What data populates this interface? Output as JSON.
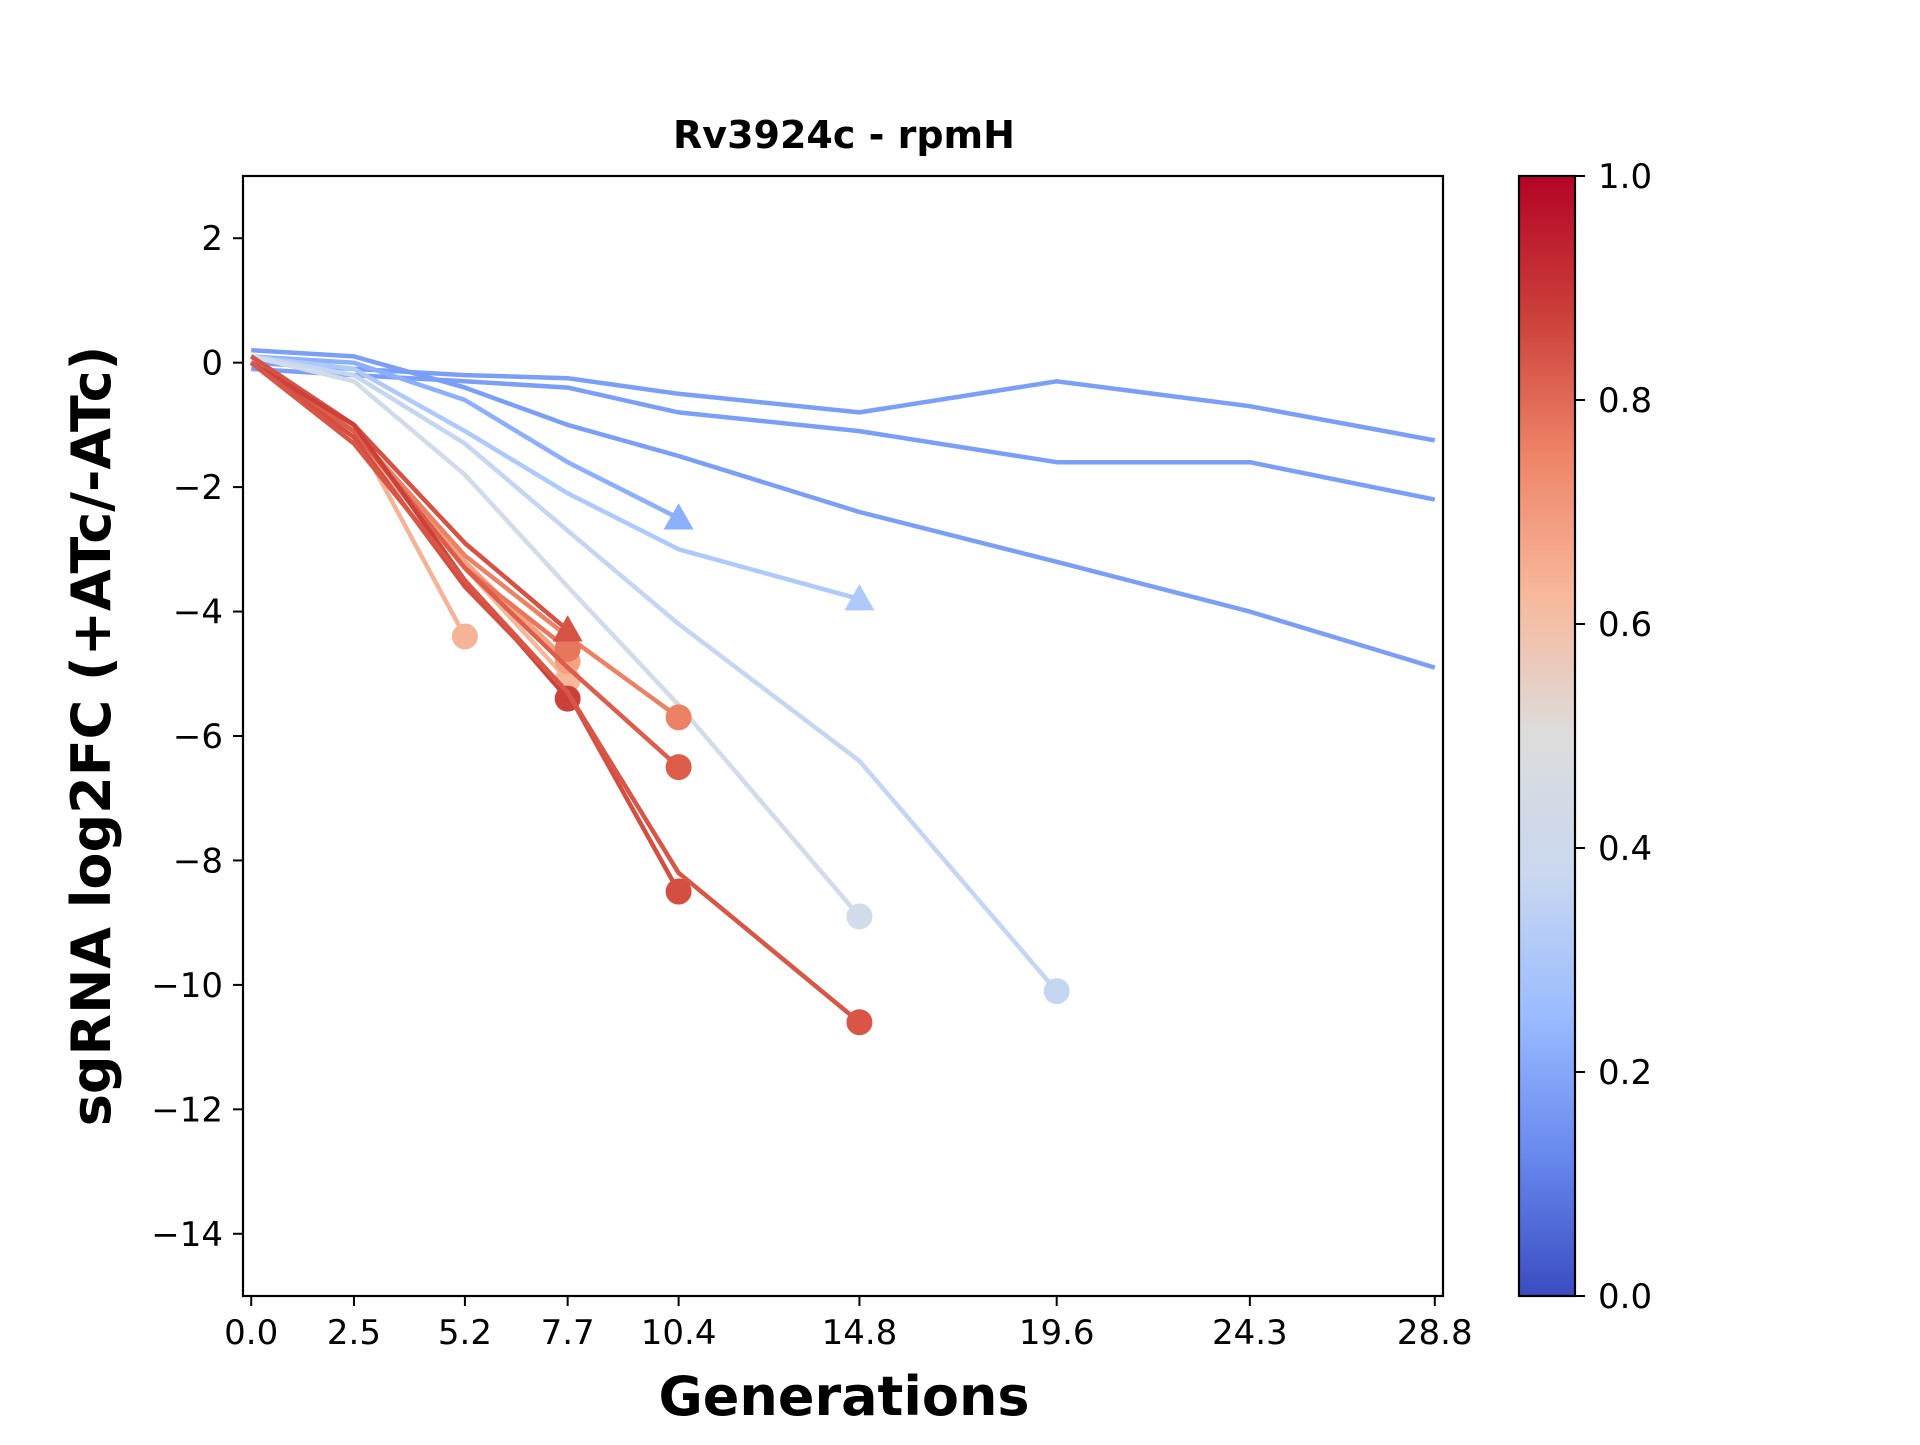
{
  "chart_data": {
    "type": "line",
    "title": "Rv3924c - rpmH",
    "xlabel": "Generations",
    "ylabel": "sgRNA log2FC (+ATc/-ATc)",
    "x_ticks": [
      0.0,
      2.5,
      5.2,
      7.7,
      10.4,
      14.8,
      19.6,
      24.3,
      28.8
    ],
    "x_tick_labels": [
      "0.0",
      "2.5",
      "5.2",
      "7.7",
      "10.4",
      "14.8",
      "19.6",
      "24.3",
      "28.8"
    ],
    "xlim": [
      -0.2,
      29.0
    ],
    "y_ticks": [
      2,
      0,
      -2,
      -4,
      -6,
      -8,
      -10,
      -12,
      -14
    ],
    "y_tick_labels": [
      "2",
      "0",
      "−2",
      "−4",
      "−6",
      "−8",
      "−10",
      "−12",
      "−14"
    ],
    "ylim": [
      -15,
      3
    ],
    "grid": false,
    "colorbar": {
      "range": [
        0.0,
        1.0
      ],
      "ticks": [
        0.0,
        0.2,
        0.4,
        0.6,
        0.8,
        1.0
      ],
      "tick_labels": [
        "0.0",
        "0.2",
        "0.4",
        "0.6",
        "0.8",
        "1.0"
      ],
      "colormap": "coolwarm",
      "stops": [
        "#3b4cc0",
        "#6788ee",
        "#9abbff",
        "#c9d7f0",
        "#dddcdc",
        "#f7b89c",
        "#ee8468",
        "#cc403a",
        "#b40426"
      ]
    },
    "series": [
      {
        "x": [
          0.0,
          2.5,
          5.2,
          7.7,
          10.4,
          14.8,
          19.6,
          24.3,
          28.8
        ],
        "y": [
          0.0,
          -0.1,
          -0.2,
          -0.25,
          -0.5,
          -0.8,
          -0.3,
          -0.7,
          -1.25
        ],
        "color": "#7b9ff9",
        "end_marker": "none"
      },
      {
        "x": [
          0.0,
          2.5,
          5.2,
          7.7,
          10.4,
          14.8,
          19.6,
          24.3,
          28.8
        ],
        "y": [
          -0.1,
          -0.2,
          -0.3,
          -0.4,
          -0.8,
          -1.1,
          -1.6,
          -1.6,
          -2.2
        ],
        "color": "#7b9ff9",
        "end_marker": "none"
      },
      {
        "x": [
          0.0,
          2.5,
          5.2,
          7.7,
          10.4,
          14.8,
          19.6,
          24.3,
          28.8
        ],
        "y": [
          0.2,
          0.1,
          -0.4,
          -1.0,
          -1.5,
          -2.4,
          -3.2,
          -4.0,
          -4.9
        ],
        "color": "#7b9ff9",
        "end_marker": "none"
      },
      {
        "x": [
          0.0,
          2.5,
          5.2,
          7.7,
          10.4
        ],
        "y": [
          0.1,
          0.0,
          -0.6,
          -1.6,
          -2.5
        ],
        "color": "#8caffe",
        "end_marker": "triangle"
      },
      {
        "x": [
          0.0,
          2.5,
          5.2,
          7.7,
          10.4,
          14.8
        ],
        "y": [
          0.1,
          -0.1,
          -1.1,
          -2.1,
          -3.0,
          -3.8
        ],
        "color": "#aec9fc",
        "end_marker": "triangle"
      },
      {
        "x": [
          0.0,
          2.5,
          5.2,
          7.7,
          10.4,
          14.8,
          19.6
        ],
        "y": [
          0.1,
          -0.2,
          -1.3,
          -2.7,
          -4.2,
          -6.4,
          -10.1
        ],
        "color": "#c5d6f2",
        "end_marker": "circle"
      },
      {
        "x": [
          0.0,
          2.5,
          5.2,
          7.7,
          10.4,
          14.8
        ],
        "y": [
          0.1,
          -0.3,
          -1.8,
          -3.6,
          -5.5,
          -8.9
        ],
        "color": "#d2dbe8",
        "end_marker": "circle"
      },
      {
        "x": [
          0.0,
          2.5,
          5.2
        ],
        "y": [
          0.0,
          -1.1,
          -4.4
        ],
        "color": "#f5b497",
        "end_marker": "circle"
      },
      {
        "x": [
          0.0,
          2.5,
          5.2,
          7.7
        ],
        "y": [
          0.0,
          -1.2,
          -3.3,
          -5.1
        ],
        "color": "#f6b89b",
        "end_marker": "circle"
      },
      {
        "x": [
          0.0,
          2.5,
          5.2,
          7.7
        ],
        "y": [
          0.0,
          -1.1,
          -3.2,
          -4.8
        ],
        "color": "#f4a282",
        "end_marker": "circle"
      },
      {
        "x": [
          0.0,
          2.5,
          5.2,
          7.7,
          10.4
        ],
        "y": [
          0.0,
          -1.1,
          -3.1,
          -4.4,
          -5.7
        ],
        "color": "#ec8265",
        "end_marker": "circle"
      },
      {
        "x": [
          0.0,
          2.5,
          5.2,
          7.7
        ],
        "y": [
          0.0,
          -1.1,
          -3.3,
          -4.6
        ],
        "color": "#e8765c",
        "end_marker": "circle"
      },
      {
        "x": [
          0.0,
          2.5,
          5.2,
          7.7,
          10.4
        ],
        "y": [
          0.0,
          -1.1,
          -3.3,
          -4.9,
          -6.5
        ],
        "color": "#dc5d4a",
        "end_marker": "circle"
      },
      {
        "x": [
          0.0,
          2.5,
          5.2,
          7.7
        ],
        "y": [
          0.1,
          -1.0,
          -2.9,
          -4.3
        ],
        "color": "#d65244",
        "end_marker": "triangle"
      },
      {
        "x": [
          0.0,
          2.5,
          5.2,
          7.7
        ],
        "y": [
          0.0,
          -1.0,
          -3.5,
          -5.4
        ],
        "color": "#cc403a",
        "end_marker": "circle"
      },
      {
        "x": [
          0.0,
          2.5,
          5.2,
          7.7,
          10.4
        ],
        "y": [
          0.0,
          -1.2,
          -3.6,
          -5.3,
          -8.5
        ],
        "color": "#d44e41",
        "end_marker": "circle"
      },
      {
        "x": [
          0.0,
          2.5,
          5.2,
          7.7,
          10.4,
          14.8
        ],
        "y": [
          0.0,
          -1.3,
          -3.5,
          -5.3,
          -8.2,
          -10.6
        ],
        "color": "#d85646",
        "end_marker": "circle"
      }
    ]
  }
}
